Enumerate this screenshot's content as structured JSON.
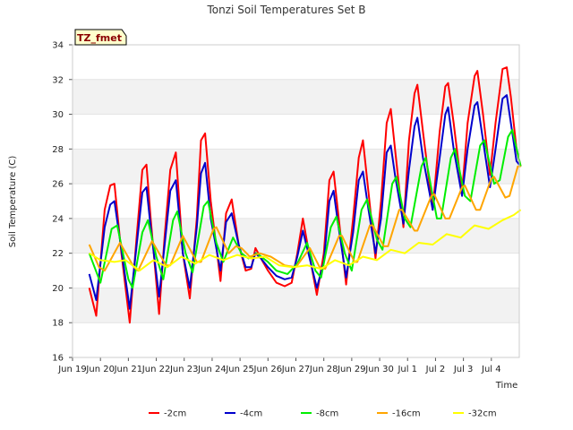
{
  "chart_data": {
    "type": "line",
    "title": "Tonzi Soil Temperatures Set B",
    "xlabel": "Time",
    "ylabel": "Soil Temperature (C)",
    "site_tag": "TZ_fmet",
    "xlim": [
      0,
      16
    ],
    "ylim": [
      16,
      34
    ],
    "x_ticks": [
      {
        "x": 0,
        "label": "Jun 19"
      },
      {
        "x": 1,
        "label": "Jun 20"
      },
      {
        "x": 2,
        "label": "Jun 21"
      },
      {
        "x": 3,
        "label": "Jun 22"
      },
      {
        "x": 4,
        "label": "Jun 23"
      },
      {
        "x": 5,
        "label": "Jun 24"
      },
      {
        "x": 6,
        "label": "Jun 25"
      },
      {
        "x": 7,
        "label": "Jun 26"
      },
      {
        "x": 8,
        "label": "Jun 27"
      },
      {
        "x": 9,
        "label": "Jun 28"
      },
      {
        "x": 10,
        "label": "Jun 29"
      },
      {
        "x": 11,
        "label": "Jun 30"
      },
      {
        "x": 12,
        "label": "Jul 1"
      },
      {
        "x": 13,
        "label": "Jul 2"
      },
      {
        "x": 14,
        "label": "Jul 3"
      },
      {
        "x": 15,
        "label": "Jul 4"
      }
    ],
    "y_ticks": [
      16,
      18,
      20,
      22,
      24,
      26,
      28,
      30,
      32,
      34
    ],
    "grid": "horizontal bands",
    "legend_position": "bottom",
    "series": [
      {
        "name": "-2cm",
        "color": "#ff0000",
        "points": [
          [
            0.6,
            20.0
          ],
          [
            0.85,
            18.4
          ],
          [
            1.15,
            24.5
          ],
          [
            1.35,
            25.9
          ],
          [
            1.5,
            26.0
          ],
          [
            1.75,
            22.0
          ],
          [
            2.05,
            18.0
          ],
          [
            2.3,
            23.0
          ],
          [
            2.5,
            26.8
          ],
          [
            2.65,
            27.1
          ],
          [
            2.8,
            24.0
          ],
          [
            3.1,
            18.5
          ],
          [
            3.3,
            23.0
          ],
          [
            3.5,
            26.8
          ],
          [
            3.7,
            27.8
          ],
          [
            3.95,
            22.0
          ],
          [
            4.2,
            19.4
          ],
          [
            4.45,
            24.0
          ],
          [
            4.6,
            28.5
          ],
          [
            4.75,
            28.9
          ],
          [
            4.95,
            25.0
          ],
          [
            5.3,
            20.4
          ],
          [
            5.5,
            24.3
          ],
          [
            5.7,
            25.1
          ],
          [
            5.95,
            22.5
          ],
          [
            6.2,
            21.0
          ],
          [
            6.4,
            21.1
          ],
          [
            6.55,
            22.3
          ],
          [
            6.75,
            21.7
          ],
          [
            7.0,
            21.0
          ],
          [
            7.3,
            20.3
          ],
          [
            7.6,
            20.1
          ],
          [
            7.85,
            20.3
          ],
          [
            8.05,
            22.0
          ],
          [
            8.25,
            24.0
          ],
          [
            8.45,
            22.2
          ],
          [
            8.75,
            19.6
          ],
          [
            9.0,
            22.0
          ],
          [
            9.2,
            26.2
          ],
          [
            9.35,
            26.7
          ],
          [
            9.5,
            24.5
          ],
          [
            9.8,
            20.2
          ],
          [
            10.05,
            24.0
          ],
          [
            10.25,
            27.5
          ],
          [
            10.4,
            28.5
          ],
          [
            10.6,
            25.5
          ],
          [
            10.85,
            21.7
          ],
          [
            11.05,
            25.0
          ],
          [
            11.25,
            29.5
          ],
          [
            11.4,
            30.3
          ],
          [
            11.55,
            28.0
          ],
          [
            11.85,
            23.5
          ],
          [
            12.05,
            28.5
          ],
          [
            12.25,
            31.2
          ],
          [
            12.35,
            31.7
          ],
          [
            12.55,
            29.0
          ],
          [
            12.9,
            24.5
          ],
          [
            13.15,
            29.0
          ],
          [
            13.35,
            31.6
          ],
          [
            13.45,
            31.8
          ],
          [
            13.65,
            29.5
          ],
          [
            13.95,
            25.5
          ],
          [
            14.15,
            29.5
          ],
          [
            14.4,
            32.2
          ],
          [
            14.5,
            32.5
          ],
          [
            14.7,
            30.0
          ],
          [
            14.95,
            26.5
          ],
          [
            15.15,
            29.5
          ],
          [
            15.4,
            32.6
          ],
          [
            15.55,
            32.7
          ],
          [
            15.7,
            31.0
          ],
          [
            15.9,
            28.0
          ],
          [
            16.05,
            27.0
          ]
        ]
      },
      {
        "name": "-4cm",
        "color": "#0000cc",
        "points": [
          [
            0.6,
            20.8
          ],
          [
            0.85,
            19.3
          ],
          [
            1.15,
            23.5
          ],
          [
            1.35,
            24.8
          ],
          [
            1.5,
            25.0
          ],
          [
            1.75,
            22.2
          ],
          [
            2.05,
            18.8
          ],
          [
            2.3,
            22.5
          ],
          [
            2.5,
            25.5
          ],
          [
            2.65,
            25.8
          ],
          [
            2.8,
            23.5
          ],
          [
            3.1,
            19.5
          ],
          [
            3.3,
            22.5
          ],
          [
            3.5,
            25.6
          ],
          [
            3.7,
            26.2
          ],
          [
            3.95,
            22.0
          ],
          [
            4.2,
            20.0
          ],
          [
            4.45,
            23.5
          ],
          [
            4.6,
            26.6
          ],
          [
            4.75,
            27.2
          ],
          [
            4.95,
            24.0
          ],
          [
            5.3,
            21.0
          ],
          [
            5.5,
            23.8
          ],
          [
            5.7,
            24.3
          ],
          [
            5.95,
            22.5
          ],
          [
            6.2,
            21.2
          ],
          [
            6.4,
            21.2
          ],
          [
            6.55,
            22.0
          ],
          [
            6.75,
            21.7
          ],
          [
            7.0,
            21.2
          ],
          [
            7.3,
            20.7
          ],
          [
            7.6,
            20.5
          ],
          [
            7.85,
            20.6
          ],
          [
            8.05,
            21.8
          ],
          [
            8.25,
            23.3
          ],
          [
            8.45,
            22.0
          ],
          [
            8.75,
            20.0
          ],
          [
            9.0,
            21.5
          ],
          [
            9.2,
            25.0
          ],
          [
            9.35,
            25.6
          ],
          [
            9.5,
            23.8
          ],
          [
            9.8,
            20.6
          ],
          [
            10.05,
            23.2
          ],
          [
            10.25,
            26.2
          ],
          [
            10.4,
            26.7
          ],
          [
            10.6,
            24.5
          ],
          [
            10.85,
            22.0
          ],
          [
            11.05,
            24.0
          ],
          [
            11.25,
            27.8
          ],
          [
            11.4,
            28.2
          ],
          [
            11.55,
            26.5
          ],
          [
            11.85,
            23.7
          ],
          [
            12.05,
            26.8
          ],
          [
            12.25,
            29.3
          ],
          [
            12.35,
            29.8
          ],
          [
            12.55,
            27.5
          ],
          [
            12.9,
            24.5
          ],
          [
            13.15,
            27.5
          ],
          [
            13.35,
            30.0
          ],
          [
            13.45,
            30.4
          ],
          [
            13.65,
            28.0
          ],
          [
            13.95,
            25.3
          ],
          [
            14.15,
            28.0
          ],
          [
            14.4,
            30.5
          ],
          [
            14.5,
            30.7
          ],
          [
            14.7,
            28.5
          ],
          [
            14.95,
            25.8
          ],
          [
            15.15,
            28.0
          ],
          [
            15.4,
            30.9
          ],
          [
            15.55,
            31.1
          ],
          [
            15.7,
            29.5
          ],
          [
            15.9,
            27.3
          ],
          [
            16.05,
            27.0
          ]
        ]
      },
      {
        "name": "-8cm",
        "color": "#00ee00",
        "points": [
          [
            0.6,
            22.0
          ],
          [
            1.0,
            20.3
          ],
          [
            1.4,
            23.4
          ],
          [
            1.6,
            23.6
          ],
          [
            2.0,
            20.5
          ],
          [
            2.15,
            20.0
          ],
          [
            2.5,
            23.2
          ],
          [
            2.7,
            23.9
          ],
          [
            3.0,
            21.8
          ],
          [
            3.25,
            20.5
          ],
          [
            3.6,
            23.9
          ],
          [
            3.75,
            24.4
          ],
          [
            4.05,
            22.0
          ],
          [
            4.3,
            20.9
          ],
          [
            4.7,
            24.7
          ],
          [
            4.85,
            25.0
          ],
          [
            5.15,
            22.6
          ],
          [
            5.4,
            21.5
          ],
          [
            5.75,
            22.9
          ],
          [
            6.05,
            22.0
          ],
          [
            6.3,
            21.7
          ],
          [
            6.6,
            22.0
          ],
          [
            7.0,
            21.5
          ],
          [
            7.3,
            21.0
          ],
          [
            7.7,
            20.8
          ],
          [
            8.05,
            21.4
          ],
          [
            8.4,
            22.6
          ],
          [
            8.7,
            21.0
          ],
          [
            8.9,
            20.6
          ],
          [
            9.25,
            23.5
          ],
          [
            9.45,
            24.1
          ],
          [
            9.75,
            22.0
          ],
          [
            10.0,
            21.0
          ],
          [
            10.35,
            24.5
          ],
          [
            10.55,
            25.1
          ],
          [
            10.9,
            22.8
          ],
          [
            11.1,
            22.2
          ],
          [
            11.45,
            26.0
          ],
          [
            11.6,
            26.4
          ],
          [
            11.9,
            24.0
          ],
          [
            12.1,
            23.5
          ],
          [
            12.5,
            27.0
          ],
          [
            12.65,
            27.5
          ],
          [
            13.05,
            24.0
          ],
          [
            13.2,
            24.0
          ],
          [
            13.55,
            27.5
          ],
          [
            13.7,
            28.0
          ],
          [
            14.05,
            25.3
          ],
          [
            14.25,
            25.0
          ],
          [
            14.6,
            28.2
          ],
          [
            14.75,
            28.5
          ],
          [
            15.1,
            26.0
          ],
          [
            15.3,
            26.2
          ],
          [
            15.6,
            28.7
          ],
          [
            15.75,
            29.1
          ],
          [
            16.05,
            27.0
          ]
        ]
      },
      {
        "name": "-16cm",
        "color": "#ffa500",
        "points": [
          [
            0.6,
            22.5
          ],
          [
            0.95,
            21.2
          ],
          [
            1.15,
            21.0
          ],
          [
            1.7,
            22.6
          ],
          [
            2.2,
            21.2
          ],
          [
            2.35,
            21.0
          ],
          [
            2.85,
            22.7
          ],
          [
            3.35,
            21.3
          ],
          [
            3.5,
            21.3
          ],
          [
            3.95,
            23.0
          ],
          [
            4.45,
            21.5
          ],
          [
            4.6,
            21.5
          ],
          [
            5.05,
            23.4
          ],
          [
            5.15,
            23.5
          ],
          [
            5.6,
            22.0
          ],
          [
            5.85,
            22.4
          ],
          [
            6.05,
            22.3
          ],
          [
            6.35,
            21.8
          ],
          [
            6.7,
            22.0
          ],
          [
            7.1,
            21.8
          ],
          [
            7.6,
            21.3
          ],
          [
            8.0,
            21.2
          ],
          [
            8.5,
            22.3
          ],
          [
            8.85,
            21.2
          ],
          [
            9.05,
            21.1
          ],
          [
            9.55,
            23.0
          ],
          [
            9.65,
            23.0
          ],
          [
            10.1,
            21.5
          ],
          [
            10.2,
            21.5
          ],
          [
            10.65,
            23.6
          ],
          [
            10.75,
            23.6
          ],
          [
            11.15,
            22.4
          ],
          [
            11.3,
            22.4
          ],
          [
            11.7,
            24.5
          ],
          [
            11.8,
            24.5
          ],
          [
            12.25,
            23.3
          ],
          [
            12.35,
            23.3
          ],
          [
            12.85,
            25.3
          ],
          [
            12.95,
            25.4
          ],
          [
            13.35,
            24.0
          ],
          [
            13.5,
            24.0
          ],
          [
            13.95,
            25.8
          ],
          [
            14.05,
            25.9
          ],
          [
            14.45,
            24.5
          ],
          [
            14.6,
            24.5
          ],
          [
            15.0,
            26.3
          ],
          [
            15.1,
            26.4
          ],
          [
            15.5,
            25.2
          ],
          [
            15.65,
            25.3
          ],
          [
            15.95,
            27.0
          ],
          [
            16.05,
            27.0
          ]
        ]
      },
      {
        "name": "-32cm",
        "color": "#ffff00",
        "points": [
          [
            0.6,
            22.0
          ],
          [
            1.0,
            21.6
          ],
          [
            1.5,
            21.5
          ],
          [
            1.9,
            21.6
          ],
          [
            2.4,
            21.0
          ],
          [
            2.9,
            21.6
          ],
          [
            3.4,
            21.2
          ],
          [
            3.9,
            21.8
          ],
          [
            4.4,
            21.4
          ],
          [
            4.9,
            21.9
          ],
          [
            5.4,
            21.6
          ],
          [
            5.9,
            21.9
          ],
          [
            6.4,
            21.7
          ],
          [
            6.9,
            21.8
          ],
          [
            7.4,
            21.3
          ],
          [
            7.9,
            21.2
          ],
          [
            8.4,
            21.3
          ],
          [
            8.9,
            21.1
          ],
          [
            9.4,
            21.6
          ],
          [
            9.9,
            21.3
          ],
          [
            10.4,
            21.8
          ],
          [
            10.9,
            21.6
          ],
          [
            11.4,
            22.2
          ],
          [
            11.9,
            22.0
          ],
          [
            12.4,
            22.6
          ],
          [
            12.9,
            22.5
          ],
          [
            13.4,
            23.1
          ],
          [
            13.9,
            22.9
          ],
          [
            14.4,
            23.6
          ],
          [
            14.9,
            23.4
          ],
          [
            15.4,
            23.9
          ],
          [
            15.8,
            24.2
          ],
          [
            16.05,
            24.5
          ]
        ]
      }
    ]
  }
}
